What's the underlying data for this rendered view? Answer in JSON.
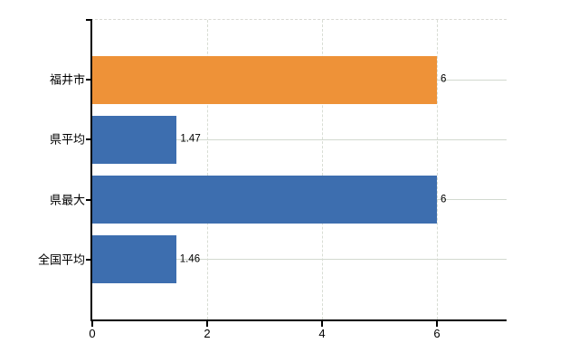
{
  "chart_data": {
    "type": "bar",
    "orientation": "horizontal",
    "title": "",
    "xlabel": "",
    "ylabel": "",
    "categories": [
      "福井市",
      "県平均",
      "県最大",
      "全国平均"
    ],
    "values": [
      6,
      1.47,
      6,
      1.46
    ],
    "value_labels": [
      "6",
      "1.47",
      "6",
      "1.46"
    ],
    "bar_colors": [
      "#ee9238",
      "#3d6eaf",
      "#3d6eaf",
      "#3d6eaf"
    ],
    "x_ticks": [
      0,
      2,
      4,
      6
    ],
    "x_tick_labels": [
      "0",
      "2",
      "4",
      "6"
    ],
    "xlim": [
      0,
      7.21
    ],
    "grid": true,
    "legend": false,
    "colors": {
      "highlight_bar": "#ee9238",
      "default_bar": "#3d6eaf",
      "horizontal_grid_line": "#d2d9cf",
      "vertical_grid_line": "#d8ddd4",
      "top_border_dashed": "#d9d9d4",
      "axis_line": "#000000",
      "text": "#000000",
      "background": "#ffffff"
    }
  }
}
